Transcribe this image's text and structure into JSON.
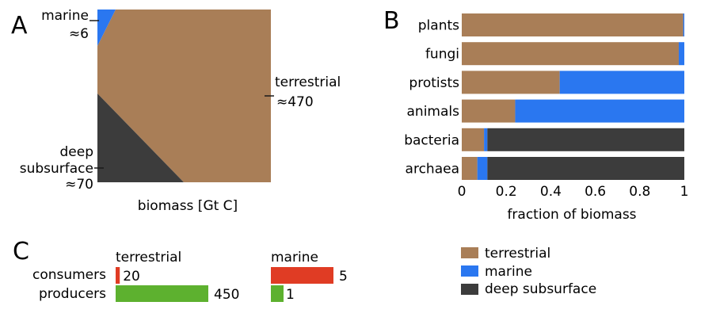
{
  "panels": {
    "a_label": "A",
    "b_label": "B",
    "c_label": "C"
  },
  "colors": {
    "terrestrial": "#a97e57",
    "marine": "#2a77f0",
    "deep": "#3c3c3c",
    "consumers": "#e03c24",
    "producers": "#5db12f"
  },
  "chart_data": [
    {
      "type": "area",
      "panel": "A",
      "xlabel": "biomass [Gt C]",
      "total_units": 546,
      "series": [
        {
          "name": "terrestrial",
          "label": "terrestrial",
          "value_label": "≈470",
          "value": 470
        },
        {
          "name": "marine",
          "label": "marine",
          "value_label": "≈6",
          "value": 6
        },
        {
          "name": "deep subsurface",
          "label_line1": "deep",
          "label_line2": "subsurface",
          "value_label": "≈70",
          "value": 70
        }
      ]
    },
    {
      "type": "bar",
      "panel": "B",
      "orientation": "horizontal",
      "stacked": true,
      "categories": [
        "plants",
        "fungi",
        "protists",
        "animals",
        "bacteria",
        "archaea"
      ],
      "series": [
        {
          "name": "terrestrial",
          "values": [
            0.995,
            0.975,
            0.44,
            0.24,
            0.1,
            0.07
          ]
        },
        {
          "name": "marine",
          "values": [
            0.005,
            0.025,
            0.56,
            0.76,
            0.015,
            0.045
          ]
        },
        {
          "name": "deep subsurface",
          "values": [
            0,
            0,
            0,
            0,
            0.885,
            0.885
          ]
        }
      ],
      "xlim": [
        0,
        1
      ],
      "xticks": [
        "0",
        "0.2",
        "0.4",
        "0.6",
        "0.8",
        "1"
      ],
      "xlabel": "fraction of biomass",
      "legend": {
        "placement": "bottom-right",
        "items": [
          "terrestrial",
          "marine",
          "deep subsurface"
        ]
      }
    },
    {
      "type": "bar",
      "panel": "C",
      "orientation": "horizontal",
      "groups": [
        "terrestrial",
        "marine"
      ],
      "row_labels": [
        "consumers",
        "producers"
      ],
      "terrestrial": {
        "consumers": 20,
        "producers": 450
      },
      "marine": {
        "consumers": 5,
        "producers": 1
      },
      "value_labels": {
        "t_consumers": "20",
        "t_producers": "450",
        "m_consumers": "5",
        "m_producers": "1"
      }
    }
  ]
}
